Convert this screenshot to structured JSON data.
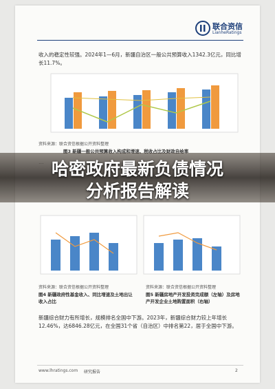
{
  "header": {
    "logo_name": "联合资信",
    "logo_en": "LianheRatings"
  },
  "paragraph_1": "收入的稳定性较强。2024年1—6月，新疆自治区一般公共预算收入1342.3亿元，同比增长11.7%。",
  "figure_3": {
    "source": "资料来源：联合资信根据公开资料整理",
    "caption": "图3  新疆一般公共预算收入构成和增速、税收占比及财政自给率"
  },
  "overlay_title": [
    "哈密政府最新负债情况",
    "分析报告解读"
  ],
  "figure_4": {
    "source": "资料来源：联合资信根据公开资料整理",
    "caption": "图4  新疆政府性基金收入、同比增速及土地出让收入占比"
  },
  "figure_5": {
    "source": "资料来源：联合资信根据公开资料整理",
    "caption": "图5  新疆房地产开发投资完成额（左轴）及房地产开发企业土地购置面积（右轴）"
  },
  "paragraph_2": "新疆综合财力有所增长，规模排名全国中下游。2023年，新疆综合财力较上年增长12.46%，达6846.28亿元，在全国31个省（自治区）中排名第22，居于全国中下游。",
  "footer": {
    "url": "www.lhratings.com",
    "label": "研究报告",
    "page": "2"
  }
}
